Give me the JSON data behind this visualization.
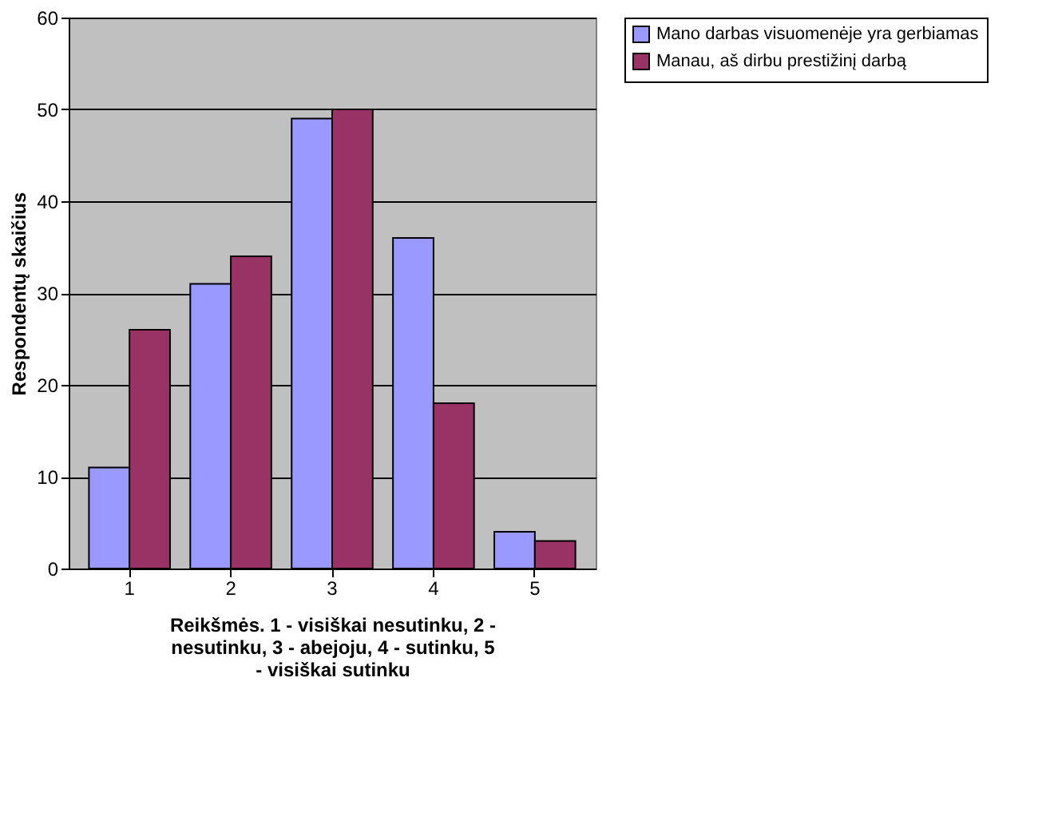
{
  "chart_data": {
    "type": "bar",
    "ylabel": "Respondentų skaičius",
    "xlabel": "Reikšmės. 1 - visiškai nesutinku, 2 -\nnesutinku, 3 - abejoju, 4 - sutinku, 5\n- visiškai sutinku",
    "categories": [
      "1",
      "2",
      "3",
      "4",
      "5"
    ],
    "series": [
      {
        "name": "Mano darbas visuomenėje yra gerbiamas",
        "color": "#9999ff",
        "values": [
          11,
          31,
          49,
          36,
          4
        ]
      },
      {
        "name": "Manau, aš dirbu prestižinį darbą",
        "color": "#993366",
        "values": [
          26,
          34,
          50,
          18,
          3
        ]
      }
    ],
    "ylim": [
      0,
      60
    ],
    "yticks": [
      0,
      10,
      20,
      30,
      40,
      50,
      60
    ],
    "grid": "y",
    "legend": "right"
  }
}
